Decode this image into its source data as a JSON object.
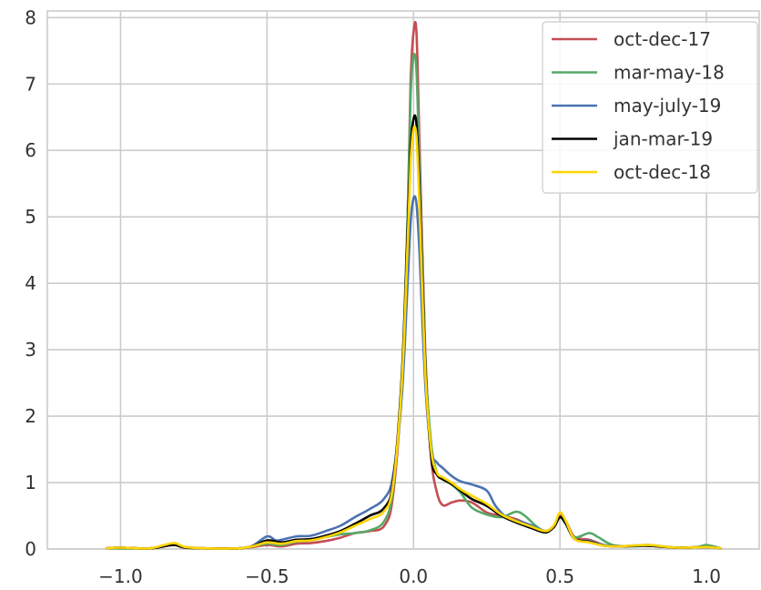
{
  "chart_data": {
    "type": "line",
    "title": "",
    "xlabel": "",
    "ylabel": "",
    "xlim": [
      -1.25,
      1.18
    ],
    "ylim": [
      0,
      8.1
    ],
    "x_ticks": [
      -1.0,
      -0.5,
      0.0,
      0.5,
      1.0
    ],
    "x_tick_labels": [
      "−1.0",
      "−0.5",
      "0.0",
      "0.5",
      "1.0"
    ],
    "y_ticks": [
      0,
      1,
      2,
      3,
      4,
      5,
      6,
      7,
      8
    ],
    "y_tick_labels": [
      "0",
      "1",
      "2",
      "3",
      "4",
      "5",
      "6",
      "7",
      "8"
    ],
    "grid": true,
    "legend_position": "top-right",
    "series": [
      {
        "name": "oct-dec-17",
        "color": "#c44e52",
        "points": [
          [
            -1.05,
            0.01
          ],
          [
            -1.0,
            0.02
          ],
          [
            -0.9,
            0.01
          ],
          [
            -0.82,
            0.07
          ],
          [
            -0.78,
            0.02
          ],
          [
            -0.7,
            0.01
          ],
          [
            -0.6,
            0.01
          ],
          [
            -0.55,
            0.03
          ],
          [
            -0.5,
            0.06
          ],
          [
            -0.45,
            0.04
          ],
          [
            -0.4,
            0.08
          ],
          [
            -0.35,
            0.09
          ],
          [
            -0.3,
            0.12
          ],
          [
            -0.25,
            0.17
          ],
          [
            -0.2,
            0.24
          ],
          [
            -0.15,
            0.27
          ],
          [
            -0.1,
            0.35
          ],
          [
            -0.07,
            0.8
          ],
          [
            -0.04,
            2.5
          ],
          [
            -0.02,
            5.0
          ],
          [
            -0.01,
            7.0
          ],
          [
            0.0,
            7.78
          ],
          [
            0.01,
            7.78
          ],
          [
            0.02,
            6.2
          ],
          [
            0.04,
            3.0
          ],
          [
            0.06,
            1.4
          ],
          [
            0.08,
            0.85
          ],
          [
            0.1,
            0.66
          ],
          [
            0.13,
            0.7
          ],
          [
            0.16,
            0.73
          ],
          [
            0.2,
            0.7
          ],
          [
            0.25,
            0.55
          ],
          [
            0.3,
            0.5
          ],
          [
            0.35,
            0.45
          ],
          [
            0.4,
            0.35
          ],
          [
            0.45,
            0.27
          ],
          [
            0.48,
            0.33
          ],
          [
            0.5,
            0.5
          ],
          [
            0.52,
            0.42
          ],
          [
            0.55,
            0.18
          ],
          [
            0.6,
            0.14
          ],
          [
            0.65,
            0.06
          ],
          [
            0.7,
            0.04
          ],
          [
            0.8,
            0.05
          ],
          [
            0.9,
            0.02
          ],
          [
            1.0,
            0.03
          ],
          [
            1.05,
            0.01
          ]
        ]
      },
      {
        "name": "mar-may-18",
        "color": "#55a868",
        "points": [
          [
            -1.05,
            0.01
          ],
          [
            -1.0,
            0.01
          ],
          [
            -0.9,
            0.01
          ],
          [
            -0.82,
            0.06
          ],
          [
            -0.78,
            0.02
          ],
          [
            -0.7,
            0.01
          ],
          [
            -0.6,
            0.01
          ],
          [
            -0.55,
            0.04
          ],
          [
            -0.5,
            0.08
          ],
          [
            -0.45,
            0.06
          ],
          [
            -0.4,
            0.11
          ],
          [
            -0.35,
            0.13
          ],
          [
            -0.3,
            0.18
          ],
          [
            -0.25,
            0.22
          ],
          [
            -0.2,
            0.24
          ],
          [
            -0.15,
            0.28
          ],
          [
            -0.1,
            0.42
          ],
          [
            -0.07,
            0.9
          ],
          [
            -0.04,
            2.6
          ],
          [
            -0.02,
            5.0
          ],
          [
            -0.01,
            6.8
          ],
          [
            0.0,
            7.42
          ],
          [
            0.01,
            7.2
          ],
          [
            0.02,
            5.8
          ],
          [
            0.04,
            2.9
          ],
          [
            0.06,
            1.6
          ],
          [
            0.08,
            1.15
          ],
          [
            0.1,
            1.05
          ],
          [
            0.13,
            0.97
          ],
          [
            0.16,
            0.85
          ],
          [
            0.2,
            0.62
          ],
          [
            0.25,
            0.52
          ],
          [
            0.3,
            0.48
          ],
          [
            0.35,
            0.56
          ],
          [
            0.38,
            0.5
          ],
          [
            0.42,
            0.34
          ],
          [
            0.45,
            0.27
          ],
          [
            0.48,
            0.35
          ],
          [
            0.5,
            0.48
          ],
          [
            0.52,
            0.38
          ],
          [
            0.55,
            0.18
          ],
          [
            0.6,
            0.24
          ],
          [
            0.63,
            0.18
          ],
          [
            0.68,
            0.06
          ],
          [
            0.75,
            0.04
          ],
          [
            0.8,
            0.05
          ],
          [
            0.9,
            0.02
          ],
          [
            0.97,
            0.03
          ],
          [
            1.0,
            0.06
          ],
          [
            1.05,
            0.01
          ]
        ]
      },
      {
        "name": "may-july-19",
        "color": "#4c72b0",
        "points": [
          [
            -1.05,
            0.01
          ],
          [
            -1.0,
            0.02
          ],
          [
            -0.9,
            0.01
          ],
          [
            -0.82,
            0.07
          ],
          [
            -0.78,
            0.03
          ],
          [
            -0.7,
            0.01
          ],
          [
            -0.6,
            0.01
          ],
          [
            -0.55,
            0.05
          ],
          [
            -0.5,
            0.19
          ],
          [
            -0.47,
            0.13
          ],
          [
            -0.45,
            0.14
          ],
          [
            -0.4,
            0.19
          ],
          [
            -0.35,
            0.2
          ],
          [
            -0.3,
            0.27
          ],
          [
            -0.25,
            0.35
          ],
          [
            -0.2,
            0.48
          ],
          [
            -0.15,
            0.6
          ],
          [
            -0.1,
            0.76
          ],
          [
            -0.07,
            1.1
          ],
          [
            -0.04,
            2.3
          ],
          [
            -0.02,
            4.0
          ],
          [
            -0.01,
            4.9
          ],
          [
            0.0,
            5.28
          ],
          [
            0.01,
            5.2
          ],
          [
            0.02,
            4.5
          ],
          [
            0.04,
            2.5
          ],
          [
            0.06,
            1.5
          ],
          [
            0.08,
            1.3
          ],
          [
            0.1,
            1.22
          ],
          [
            0.13,
            1.1
          ],
          [
            0.16,
            1.02
          ],
          [
            0.2,
            0.97
          ],
          [
            0.25,
            0.88
          ],
          [
            0.28,
            0.65
          ],
          [
            0.32,
            0.47
          ],
          [
            0.36,
            0.42
          ],
          [
            0.4,
            0.36
          ],
          [
            0.45,
            0.27
          ],
          [
            0.48,
            0.35
          ],
          [
            0.5,
            0.48
          ],
          [
            0.52,
            0.4
          ],
          [
            0.55,
            0.15
          ],
          [
            0.6,
            0.12
          ],
          [
            0.65,
            0.06
          ],
          [
            0.7,
            0.04
          ],
          [
            0.8,
            0.06
          ],
          [
            0.9,
            0.02
          ],
          [
            1.0,
            0.03
          ],
          [
            1.05,
            0.01
          ]
        ]
      },
      {
        "name": "jan-mar-19",
        "color": "#000000",
        "points": [
          [
            -1.05,
            0.01
          ],
          [
            -1.0,
            0.02
          ],
          [
            -0.9,
            0.01
          ],
          [
            -0.82,
            0.06
          ],
          [
            -0.78,
            0.02
          ],
          [
            -0.7,
            0.01
          ],
          [
            -0.6,
            0.01
          ],
          [
            -0.55,
            0.04
          ],
          [
            -0.5,
            0.13
          ],
          [
            -0.45,
            0.1
          ],
          [
            -0.4,
            0.14
          ],
          [
            -0.35,
            0.15
          ],
          [
            -0.3,
            0.2
          ],
          [
            -0.25,
            0.27
          ],
          [
            -0.2,
            0.38
          ],
          [
            -0.15,
            0.5
          ],
          [
            -0.1,
            0.62
          ],
          [
            -0.07,
            1.0
          ],
          [
            -0.04,
            2.6
          ],
          [
            -0.02,
            4.8
          ],
          [
            -0.01,
            6.0
          ],
          [
            0.0,
            6.47
          ],
          [
            0.01,
            6.4
          ],
          [
            0.02,
            5.4
          ],
          [
            0.04,
            2.8
          ],
          [
            0.06,
            1.4
          ],
          [
            0.08,
            1.12
          ],
          [
            0.1,
            1.05
          ],
          [
            0.13,
            0.98
          ],
          [
            0.16,
            0.88
          ],
          [
            0.2,
            0.75
          ],
          [
            0.25,
            0.65
          ],
          [
            0.3,
            0.5
          ],
          [
            0.35,
            0.4
          ],
          [
            0.4,
            0.32
          ],
          [
            0.45,
            0.25
          ],
          [
            0.48,
            0.34
          ],
          [
            0.5,
            0.48
          ],
          [
            0.52,
            0.38
          ],
          [
            0.55,
            0.15
          ],
          [
            0.6,
            0.11
          ],
          [
            0.65,
            0.05
          ],
          [
            0.7,
            0.04
          ],
          [
            0.8,
            0.05
          ],
          [
            0.9,
            0.02
          ],
          [
            1.0,
            0.03
          ],
          [
            1.05,
            0.01
          ]
        ]
      },
      {
        "name": "oct-dec-18",
        "color": "#ffd500",
        "points": [
          [
            -1.05,
            0.01
          ],
          [
            -1.0,
            0.02
          ],
          [
            -0.9,
            0.01
          ],
          [
            -0.82,
            0.09
          ],
          [
            -0.78,
            0.03
          ],
          [
            -0.7,
            0.01
          ],
          [
            -0.6,
            0.01
          ],
          [
            -0.55,
            0.04
          ],
          [
            -0.5,
            0.1
          ],
          [
            -0.45,
            0.08
          ],
          [
            -0.4,
            0.12
          ],
          [
            -0.35,
            0.13
          ],
          [
            -0.3,
            0.18
          ],
          [
            -0.25,
            0.25
          ],
          [
            -0.2,
            0.35
          ],
          [
            -0.15,
            0.45
          ],
          [
            -0.1,
            0.57
          ],
          [
            -0.07,
            0.95
          ],
          [
            -0.04,
            2.5
          ],
          [
            -0.02,
            4.6
          ],
          [
            -0.01,
            5.8
          ],
          [
            0.0,
            6.32
          ],
          [
            0.01,
            6.2
          ],
          [
            0.02,
            5.2
          ],
          [
            0.04,
            2.7
          ],
          [
            0.06,
            1.5
          ],
          [
            0.08,
            1.15
          ],
          [
            0.1,
            1.08
          ],
          [
            0.13,
            1.0
          ],
          [
            0.16,
            0.9
          ],
          [
            0.2,
            0.8
          ],
          [
            0.25,
            0.68
          ],
          [
            0.3,
            0.52
          ],
          [
            0.35,
            0.42
          ],
          [
            0.4,
            0.34
          ],
          [
            0.45,
            0.27
          ],
          [
            0.48,
            0.36
          ],
          [
            0.5,
            0.55
          ],
          [
            0.52,
            0.42
          ],
          [
            0.55,
            0.15
          ],
          [
            0.6,
            0.1
          ],
          [
            0.65,
            0.05
          ],
          [
            0.7,
            0.04
          ],
          [
            0.8,
            0.06
          ],
          [
            0.9,
            0.02
          ],
          [
            1.0,
            0.03
          ],
          [
            1.05,
            0.01
          ]
        ]
      }
    ]
  }
}
